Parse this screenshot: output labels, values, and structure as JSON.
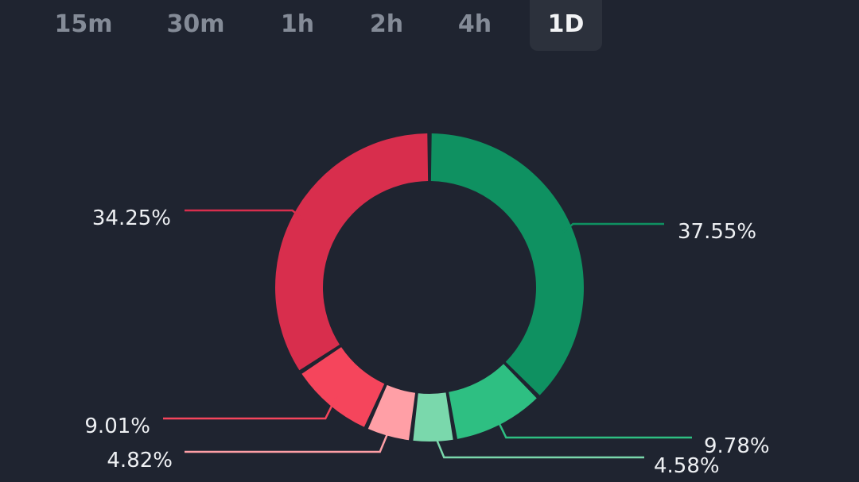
{
  "timeframes": {
    "items": [
      {
        "label": "15m"
      },
      {
        "label": "30m"
      },
      {
        "label": "1h"
      },
      {
        "label": "2h"
      },
      {
        "label": "4h"
      },
      {
        "label": "1D"
      }
    ],
    "selected": "1D"
  },
  "chart_data": {
    "type": "pie",
    "title": "",
    "categories": [
      "",
      "",
      "",
      "",
      "",
      ""
    ],
    "values": [
      37.55,
      9.78,
      4.58,
      4.82,
      9.01,
      34.25
    ],
    "labels": [
      "37.55%",
      "9.78%",
      "4.58%",
      "4.82%",
      "9.01%",
      "34.25%"
    ],
    "colors": [
      "#0f9161",
      "#2ebf82",
      "#7ad8ac",
      "#ff9fa6",
      "#f5455c",
      "#d82e4d"
    ],
    "donut": true,
    "legend": "none"
  }
}
